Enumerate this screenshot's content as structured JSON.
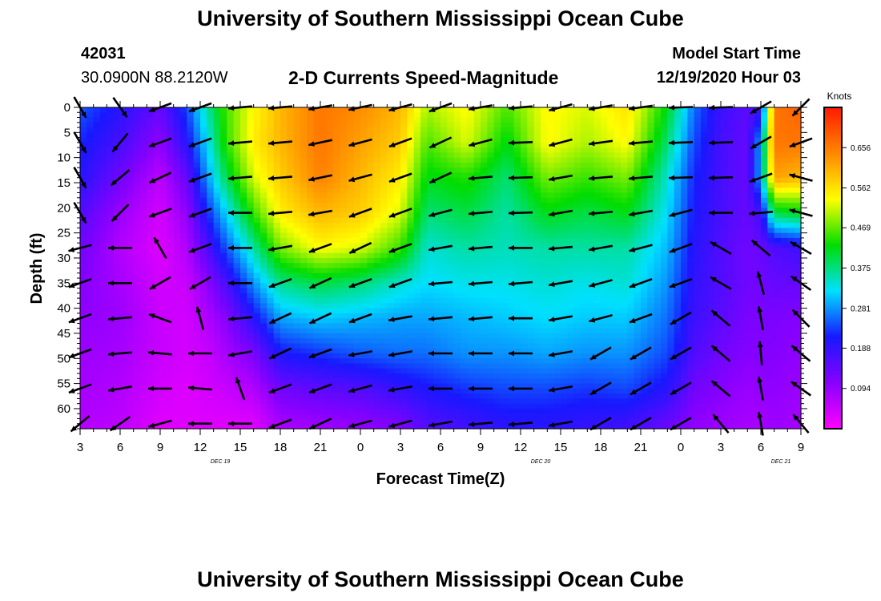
{
  "header": {
    "title": "University of Southern Mississippi Ocean Cube",
    "station_id": "42031",
    "station_coords": "30.0900N 88.2120W",
    "chart_title": "2-D Currents Speed-Magnitude",
    "model_start_label": "Model Start Time",
    "model_start_value": "12/19/2020 Hour 03"
  },
  "footer": {
    "title": "University of Southern Mississippi Ocean Cube"
  },
  "chart_data": {
    "type": "heatmap",
    "title": "2-D Currents Speed-Magnitude",
    "xlabel": "Forecast Time(Z)",
    "ylabel": "Depth (ft)",
    "x_tick_labels": [
      "3",
      "6",
      "9",
      "12",
      "15",
      "18",
      "21",
      "0",
      "3",
      "6",
      "9",
      "12",
      "15",
      "18",
      "21",
      "0",
      "3",
      "6",
      "9"
    ],
    "date_labels": [
      {
        "label": "DEC 19",
        "after_tick": 3
      },
      {
        "label": "DEC 20",
        "after_tick": 11
      },
      {
        "label": "DEC 21",
        "after_tick": 17
      }
    ],
    "y_tick_labels": [
      "0",
      "5",
      "10",
      "15",
      "20",
      "25",
      "30",
      "35",
      "40",
      "45",
      "50",
      "55",
      "60"
    ],
    "ylim": [
      0,
      64
    ],
    "y_inverted": true,
    "colorbar": {
      "label": "Knots",
      "ticks": [
        "0.656",
        "0.562",
        "0.469",
        "0.375",
        "0.281",
        "0.188",
        "0.094"
      ],
      "tick_values": [
        0.656,
        0.562,
        0.469,
        0.375,
        0.281,
        0.188,
        0.094
      ],
      "range": [
        0,
        0.75
      ],
      "colors": [
        "#ff00ff",
        "#8800ff",
        "#1818ff",
        "#00e0ff",
        "#00dd00",
        "#ffff00",
        "#ff8800",
        "#ff1a00"
      ]
    },
    "grid": false,
    "speed_depths": [
      0,
      7,
      14,
      21,
      28,
      35,
      42,
      49,
      56,
      63
    ],
    "speed_columns": [
      {
        "t": 0,
        "v": [
          0.25,
          0.22,
          0.2,
          0.16,
          0.13,
          0.11,
          0.1,
          0.09,
          0.08,
          0.07
        ]
      },
      {
        "t": 3,
        "v": [
          0.2,
          0.17,
          0.13,
          0.09,
          0.07,
          0.08,
          0.09,
          0.08,
          0.07,
          0.06
        ]
      },
      {
        "t": 6,
        "v": [
          0.14,
          0.1,
          0.06,
          0.04,
          0.03,
          0.04,
          0.05,
          0.05,
          0.04,
          0.03
        ]
      },
      {
        "t": 8,
        "v": [
          0.24,
          0.2,
          0.14,
          0.1,
          0.07,
          0.05,
          0.04,
          0.04,
          0.03,
          0.03
        ]
      },
      {
        "t": 9.5,
        "v": [
          0.36,
          0.32,
          0.28,
          0.22,
          0.16,
          0.1,
          0.07,
          0.05,
          0.04,
          0.03
        ]
      },
      {
        "t": 11,
        "v": [
          0.46,
          0.45,
          0.4,
          0.32,
          0.25,
          0.17,
          0.11,
          0.08,
          0.05,
          0.03
        ]
      },
      {
        "t": 13,
        "v": [
          0.54,
          0.55,
          0.52,
          0.45,
          0.36,
          0.28,
          0.2,
          0.12,
          0.07,
          0.03
        ]
      },
      {
        "t": 15,
        "v": [
          0.6,
          0.6,
          0.58,
          0.55,
          0.48,
          0.37,
          0.29,
          0.21,
          0.13,
          0.08
        ]
      },
      {
        "t": 18,
        "v": [
          0.66,
          0.66,
          0.65,
          0.6,
          0.54,
          0.4,
          0.31,
          0.23,
          0.15,
          0.09
        ]
      },
      {
        "t": 21,
        "v": [
          0.64,
          0.62,
          0.6,
          0.58,
          0.52,
          0.38,
          0.3,
          0.25,
          0.16,
          0.1
        ]
      },
      {
        "t": 24,
        "v": [
          0.6,
          0.58,
          0.55,
          0.52,
          0.45,
          0.34,
          0.29,
          0.26,
          0.19,
          0.12
        ]
      },
      {
        "t": 26,
        "v": [
          0.5,
          0.46,
          0.42,
          0.38,
          0.34,
          0.32,
          0.29,
          0.26,
          0.21,
          0.16
        ]
      },
      {
        "t": 29,
        "v": [
          0.54,
          0.52,
          0.44,
          0.4,
          0.36,
          0.33,
          0.3,
          0.28,
          0.23,
          0.18
        ]
      },
      {
        "t": 32,
        "v": [
          0.46,
          0.42,
          0.38,
          0.36,
          0.35,
          0.33,
          0.31,
          0.28,
          0.24,
          0.2
        ]
      },
      {
        "t": 35,
        "v": [
          0.54,
          0.54,
          0.48,
          0.42,
          0.36,
          0.34,
          0.32,
          0.29,
          0.24,
          0.2
        ]
      },
      {
        "t": 38,
        "v": [
          0.52,
          0.5,
          0.45,
          0.4,
          0.36,
          0.33,
          0.31,
          0.28,
          0.23,
          0.19
        ]
      },
      {
        "t": 41,
        "v": [
          0.56,
          0.54,
          0.48,
          0.42,
          0.36,
          0.34,
          0.31,
          0.28,
          0.24,
          0.18
        ]
      },
      {
        "t": 44,
        "v": [
          0.42,
          0.38,
          0.34,
          0.32,
          0.3,
          0.28,
          0.26,
          0.24,
          0.2,
          0.14
        ]
      },
      {
        "t": 46,
        "v": [
          0.26,
          0.24,
          0.22,
          0.21,
          0.2,
          0.19,
          0.18,
          0.16,
          0.13,
          0.1
        ]
      },
      {
        "t": 48,
        "v": [
          0.18,
          0.17,
          0.17,
          0.17,
          0.16,
          0.16,
          0.15,
          0.13,
          0.11,
          0.09
        ]
      },
      {
        "t": 50,
        "v": [
          0.15,
          0.14,
          0.14,
          0.14,
          0.13,
          0.13,
          0.12,
          0.11,
          0.09,
          0.08
        ]
      },
      {
        "t": 51,
        "v": [
          0.18,
          0.3,
          0.3,
          0.18,
          0.14,
          0.13,
          0.12,
          0.11,
          0.1,
          0.08
        ]
      },
      {
        "t": 52,
        "v": [
          0.66,
          0.66,
          0.62,
          0.4,
          0.16,
          0.14,
          0.12,
          0.11,
          0.1,
          0.09
        ]
      },
      {
        "t": 54,
        "v": [
          0.68,
          0.66,
          0.6,
          0.42,
          0.18,
          0.14,
          0.11,
          0.1,
          0.09,
          0.08
        ]
      }
    ],
    "vector_columns_t": [
      0,
      3,
      6,
      9,
      12,
      15,
      18,
      21,
      24,
      27,
      30,
      33,
      36,
      39,
      42,
      45,
      48,
      51,
      54
    ],
    "vector_rows_depth": [
      0,
      7,
      14,
      21,
      28,
      35,
      42,
      49,
      56,
      63
    ],
    "vector_directions_deg": [
      [
        300,
        305,
        200,
        200,
        185,
        185,
        190,
        192,
        195,
        200,
        190,
        185,
        195,
        190,
        188,
        182,
        182,
        210,
        225
      ],
      [
        300,
        230,
        200,
        200,
        185,
        185,
        192,
        195,
        200,
        205,
        195,
        182,
        195,
        188,
        185,
        182,
        182,
        210,
        200
      ],
      [
        300,
        220,
        205,
        200,
        185,
        185,
        192,
        195,
        200,
        205,
        185,
        182,
        190,
        185,
        185,
        182,
        182,
        200,
        165
      ],
      [
        300,
        225,
        200,
        200,
        180,
        185,
        190,
        200,
        200,
        195,
        185,
        182,
        190,
        185,
        190,
        195,
        180,
        185,
        165
      ],
      [
        195,
        180,
        120,
        200,
        180,
        190,
        200,
        205,
        200,
        190,
        185,
        180,
        185,
        190,
        195,
        200,
        150,
        140,
        150
      ],
      [
        200,
        180,
        210,
        210,
        180,
        200,
        205,
        200,
        200,
        185,
        185,
        185,
        190,
        195,
        200,
        200,
        150,
        105,
        145
      ],
      [
        200,
        185,
        160,
        105,
        185,
        205,
        205,
        200,
        190,
        185,
        185,
        180,
        190,
        195,
        200,
        210,
        140,
        100,
        135
      ],
      [
        200,
        185,
        175,
        180,
        190,
        205,
        200,
        190,
        190,
        180,
        180,
        180,
        190,
        210,
        210,
        210,
        140,
        95,
        140
      ],
      [
        200,
        190,
        180,
        175,
        110,
        200,
        200,
        195,
        190,
        180,
        180,
        180,
        190,
        210,
        210,
        210,
        140,
        100,
        145
      ],
      [
        220,
        215,
        195,
        180,
        180,
        200,
        205,
        195,
        195,
        190,
        185,
        185,
        190,
        210,
        210,
        210,
        130,
        100,
        130
      ]
    ]
  }
}
